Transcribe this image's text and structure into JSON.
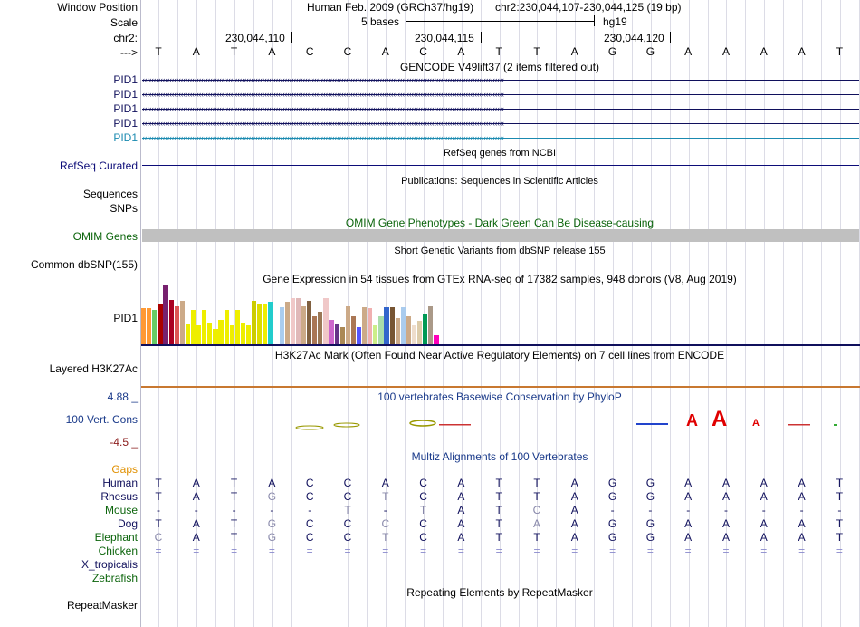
{
  "header": {
    "window_position_label": "Window Position",
    "assembly": "Human Feb. 2009 (GRCh37/hg19)",
    "position": "chr2:230,044,107-230,044,125 (19 bp)",
    "scale_label": "Scale",
    "scale_text": "5 bases",
    "scale_db": "hg19",
    "chrom_label": "chr2:",
    "ticks": [
      "230,044,110",
      "230,044,115",
      "230,044,120"
    ],
    "strand_label": "--->"
  },
  "sequence": [
    "T",
    "A",
    "T",
    "A",
    "C",
    "C",
    "A",
    "C",
    "A",
    "T",
    "T",
    "A",
    "G",
    "G",
    "A",
    "A",
    "A",
    "A",
    "T"
  ],
  "gencode": {
    "title": "GENCODE V49lift37 (2 items filtered out)",
    "rows": [
      {
        "label": "PID1",
        "color": "#10105c"
      },
      {
        "label": "PID1",
        "color": "#10105c"
      },
      {
        "label": "PID1",
        "color": "#10105c"
      },
      {
        "label": "PID1",
        "color": "#10105c"
      },
      {
        "label": "PID1",
        "color": "#1a8ab0"
      }
    ]
  },
  "refseq": {
    "title": "RefSeq genes from NCBI",
    "label": "RefSeq Curated",
    "color": "#0c0c78"
  },
  "publications": {
    "title": "Publications: Sequences in Scientific Articles",
    "labels": [
      "Sequences",
      "SNPs"
    ]
  },
  "omim": {
    "title": "OMIM Gene Phenotypes - Dark Green Can Be Disease-causing",
    "label": "OMIM Genes",
    "color": "#0b640b"
  },
  "dbsnp": {
    "title": "Short Genetic Variants from dbSNP release 155",
    "label": "Common dbSNP(155)"
  },
  "gtex": {
    "title": "Gene Expression in 54 tissues from GTEx RNA-seq of 17382 samples, 948 donors (V8, Aug 2019)",
    "label": "PID1",
    "bars": [
      {
        "v": 58,
        "c": "#ff9933"
      },
      {
        "v": 58,
        "c": "#ff9933"
      },
      {
        "v": 55,
        "c": "#66cc66"
      },
      {
        "v": 64,
        "c": "#aa0000"
      },
      {
        "v": 95,
        "c": "#77216f"
      },
      {
        "v": 72,
        "c": "#aa0022"
      },
      {
        "v": 62,
        "c": "#dd5555"
      },
      {
        "v": 70,
        "c": "#ccaa88"
      },
      {
        "v": 32,
        "c": "#eeee00"
      },
      {
        "v": 55,
        "c": "#eeee00"
      },
      {
        "v": 30,
        "c": "#eeee00"
      },
      {
        "v": 55,
        "c": "#eeee00"
      },
      {
        "v": 35,
        "c": "#eeee00"
      },
      {
        "v": 25,
        "c": "#eeee00"
      },
      {
        "v": 40,
        "c": "#eeee00"
      },
      {
        "v": 55,
        "c": "#eeee00"
      },
      {
        "v": 30,
        "c": "#eeee00"
      },
      {
        "v": 55,
        "c": "#eeee00"
      },
      {
        "v": 35,
        "c": "#eeee00"
      },
      {
        "v": 30,
        "c": "#eeee00"
      },
      {
        "v": 70,
        "c": "#cccc00"
      },
      {
        "v": 64,
        "c": "#dddd00"
      },
      {
        "v": 64,
        "c": "#eeee00"
      },
      {
        "v": 68,
        "c": "#22cccc"
      },
      {
        "v": 0,
        "c": "#ffffff"
      },
      {
        "v": 60,
        "c": "#aaccee"
      },
      {
        "v": 68,
        "c": "#ccaa88"
      },
      {
        "v": 75,
        "c": "#f0c8c8"
      },
      {
        "v": 75,
        "c": "#e0b8b8"
      },
      {
        "v": 62,
        "c": "#ccaa88"
      },
      {
        "v": 70,
        "c": "#806040"
      },
      {
        "v": 45,
        "c": "#aa7755"
      },
      {
        "v": 52,
        "c": "#997755"
      },
      {
        "v": 75,
        "c": "#f0c8c8"
      },
      {
        "v": 40,
        "c": "#cc66cc"
      },
      {
        "v": 32,
        "c": "#663388"
      },
      {
        "v": 28,
        "c": "#aa8855"
      },
      {
        "v": 62,
        "c": "#ccaa88"
      },
      {
        "v": 45,
        "c": "#aa7755"
      },
      {
        "v": 28,
        "c": "#5555ff"
      },
      {
        "v": 60,
        "c": "#ccaa88"
      },
      {
        "v": 58,
        "c": "#f0b0b0"
      },
      {
        "v": 30,
        "c": "#ccee88"
      },
      {
        "v": 45,
        "c": "#aaddaa"
      },
      {
        "v": 60,
        "c": "#3366cc"
      },
      {
        "v": 60,
        "c": "#775533"
      },
      {
        "v": 42,
        "c": "#ccaa88"
      },
      {
        "v": 60,
        "c": "#aaccee"
      },
      {
        "v": 45,
        "c": "#ccaa88"
      },
      {
        "v": 30,
        "c": "#eeddcc"
      },
      {
        "v": 38,
        "c": "#ddccaa"
      },
      {
        "v": 50,
        "c": "#009955"
      },
      {
        "v": 62,
        "c": "#aa9988"
      },
      {
        "v": 15,
        "c": "#ff00bb"
      }
    ]
  },
  "h3k27ac": {
    "title": "H3K27Ac Mark (Often Found Near Active Regulatory Elements) on 7 cell lines from ENCODE",
    "label": "Layered H3K27Ac"
  },
  "phylop": {
    "title": "100 vertebrates Basewise Conservation by PhyloP",
    "label": "100 Vert. Cons",
    "max": "4.88 _",
    "min": "-4.5 _"
  },
  "multiz": {
    "title": "Multiz Alignments of 100 Vertebrates",
    "gaps_label": "Gaps",
    "species": [
      {
        "name": "Human",
        "seq": [
          "T",
          "A",
          "T",
          "A",
          "C",
          "C",
          "A",
          "C",
          "A",
          "T",
          "T",
          "A",
          "G",
          "G",
          "A",
          "A",
          "A",
          "A",
          "T"
        ]
      },
      {
        "name": "Rhesus",
        "seq": [
          "T",
          "A",
          "T",
          "G",
          "C",
          "C",
          "T",
          "C",
          "A",
          "T",
          "T",
          "A",
          "G",
          "G",
          "A",
          "A",
          "A",
          "A",
          "T"
        ]
      },
      {
        "name": "Mouse",
        "seq": [
          "-",
          "-",
          "-",
          "-",
          "-",
          "T",
          "-",
          "T",
          "A",
          "T",
          "C",
          "A",
          "-",
          "-",
          "-",
          "-",
          "-",
          "-",
          "-"
        ]
      },
      {
        "name": "Dog",
        "seq": [
          "T",
          "A",
          "T",
          "G",
          "C",
          "C",
          "C",
          "C",
          "A",
          "T",
          "A",
          "A",
          "G",
          "G",
          "A",
          "A",
          "A",
          "A",
          "T"
        ]
      },
      {
        "name": "Elephant",
        "seq": [
          "C",
          "A",
          "T",
          "G",
          "C",
          "C",
          "T",
          "C",
          "A",
          "T",
          "T",
          "A",
          "G",
          "G",
          "A",
          "A",
          "A",
          "A",
          "T"
        ]
      },
      {
        "name": "Chicken",
        "seq": [
          "=",
          "=",
          "=",
          "=",
          "=",
          "=",
          "=",
          "=",
          "=",
          "=",
          "=",
          "=",
          "=",
          "=",
          "=",
          "=",
          "=",
          "=",
          "="
        ]
      },
      {
        "name": "X_tropicalis",
        "seq": []
      },
      {
        "name": "Zebrafish",
        "seq": []
      }
    ]
  },
  "repeatmasker": {
    "title": "Repeating Elements by RepeatMasker",
    "label": "RepeatMasker"
  }
}
